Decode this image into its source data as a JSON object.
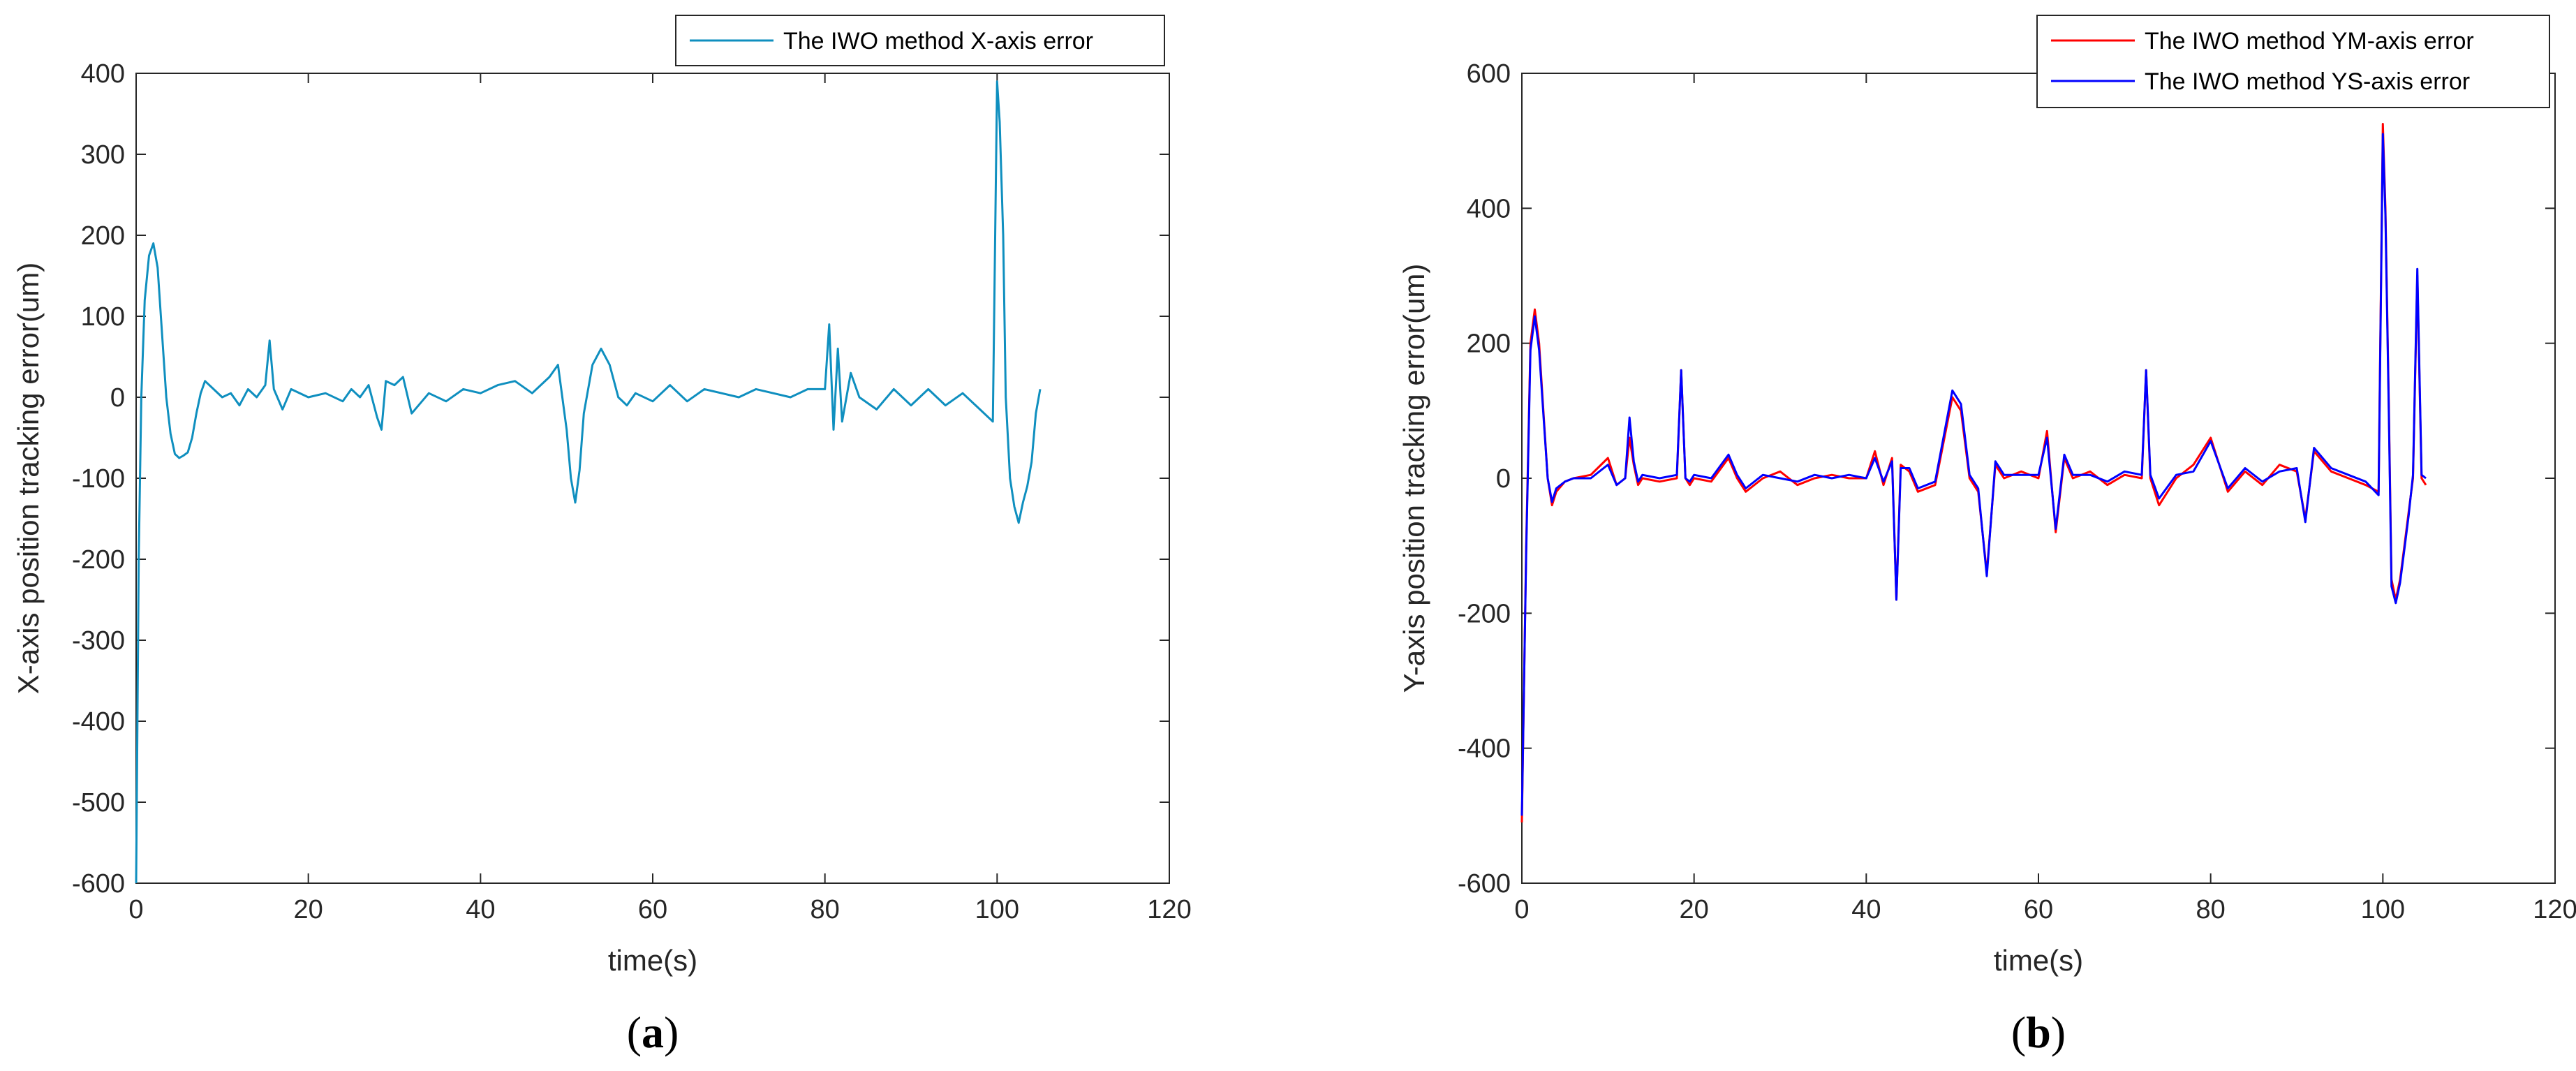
{
  "chart_data": [
    {
      "type": "line",
      "panel": "a",
      "xlabel": "time(s)",
      "ylabel": "X-axis position tracking error(um)",
      "xlim": [
        0,
        120
      ],
      "ylim": [
        -600,
        400
      ],
      "xticks": [
        0,
        20,
        40,
        60,
        80,
        100,
        120
      ],
      "yticks": [
        -600,
        -500,
        -400,
        -300,
        -200,
        -100,
        0,
        100,
        200,
        300,
        400
      ],
      "legend_position": "top-right",
      "series": [
        {
          "name": "The IWO method X-axis error",
          "color": "#0f8fbf",
          "x": [
            0,
            0.3,
            0.6,
            1.0,
            1.5,
            2.0,
            2.5,
            3.0,
            3.5,
            4.0,
            4.5,
            5.0,
            5.5,
            6.0,
            6.5,
            7.0,
            7.5,
            8.0,
            9,
            10,
            11,
            12,
            13,
            14,
            15,
            15.5,
            16,
            17,
            18,
            20,
            22,
            24,
            25,
            26,
            27,
            28,
            28.5,
            29,
            30,
            31,
            32,
            34,
            36,
            38,
            40,
            42,
            44,
            46,
            48,
            49,
            49.5,
            50,
            50.5,
            51,
            51.5,
            52,
            53,
            54,
            55,
            56,
            57,
            58,
            60,
            62,
            64,
            66,
            68,
            70,
            72,
            74,
            76,
            78,
            80,
            80.5,
            81,
            81.5,
            82,
            83,
            84,
            86,
            88,
            90,
            92,
            94,
            96,
            98,
            99.5,
            100,
            100.3,
            100.7,
            101,
            101.5,
            102,
            102.5,
            103,
            103.5,
            104,
            104.5,
            105
          ],
          "values": [
            -600,
            -200,
            0,
            120,
            175,
            190,
            160,
            80,
            0,
            -45,
            -70,
            -75,
            -72,
            -68,
            -50,
            -20,
            5,
            20,
            10,
            0,
            5,
            -10,
            10,
            0,
            15,
            70,
            10,
            -15,
            10,
            0,
            5,
            -5,
            10,
            0,
            15,
            -25,
            -40,
            20,
            15,
            25,
            -20,
            5,
            -5,
            10,
            5,
            15,
            20,
            5,
            25,
            40,
            0,
            -40,
            -100,
            -130,
            -90,
            -20,
            40,
            60,
            40,
            0,
            -10,
            5,
            -5,
            15,
            -5,
            10,
            5,
            0,
            10,
            5,
            0,
            10,
            10,
            90,
            -40,
            60,
            -30,
            30,
            0,
            -15,
            10,
            -10,
            10,
            -10,
            5,
            -15,
            -30,
            390,
            340,
            200,
            0,
            -100,
            -135,
            -155,
            -130,
            -110,
            -80,
            -20,
            10
          ]
        }
      ]
    },
    {
      "type": "line",
      "panel": "b",
      "xlabel": "time(s)",
      "ylabel": "Y-axis position tracking error(um)",
      "xlim": [
        0,
        120
      ],
      "ylim": [
        -600,
        600
      ],
      "xticks": [
        0,
        20,
        40,
        60,
        80,
        100,
        120
      ],
      "yticks": [
        -600,
        -400,
        -200,
        0,
        200,
        400,
        600
      ],
      "legend_position": "top-right",
      "series": [
        {
          "name": "The IWO method YM-axis error",
          "color": "#ff0000",
          "x": [
            0,
            0.5,
            1.0,
            1.5,
            2.0,
            2.5,
            3.0,
            3.5,
            4.0,
            5,
            6,
            8,
            10,
            11,
            12,
            12.5,
            13,
            13.5,
            14,
            16,
            18,
            18.5,
            19,
            19.5,
            20,
            22,
            24,
            25,
            26,
            28,
            30,
            32,
            34,
            36,
            38,
            40,
            41,
            42,
            43,
            43.5,
            44,
            45,
            46,
            48,
            50,
            51,
            52,
            53,
            54,
            55,
            56,
            58,
            60,
            61,
            62,
            63,
            64,
            66,
            68,
            70,
            72,
            72.5,
            73,
            74,
            76,
            78,
            80,
            82,
            84,
            86,
            88,
            90,
            91,
            92,
            94,
            96,
            98,
            99.5,
            100,
            100.3,
            100.7,
            101,
            101.5,
            102,
            102.5,
            103,
            103.5,
            104,
            104.5,
            105
          ],
          "values": [
            -510,
            -100,
            200,
            250,
            200,
            100,
            0,
            -40,
            -20,
            -5,
            0,
            5,
            30,
            -10,
            0,
            60,
            20,
            -10,
            0,
            -5,
            0,
            160,
            0,
            -10,
            0,
            -5,
            30,
            0,
            -20,
            0,
            10,
            -10,
            0,
            5,
            0,
            0,
            40,
            -10,
            30,
            -180,
            20,
            10,
            -20,
            -10,
            120,
            100,
            0,
            -20,
            -140,
            20,
            0,
            10,
            0,
            70,
            -80,
            30,
            0,
            10,
            -10,
            5,
            0,
            160,
            0,
            -40,
            0,
            20,
            60,
            -20,
            10,
            -10,
            20,
            10,
            -60,
            40,
            10,
            0,
            -10,
            -20,
            525,
            400,
            100,
            -150,
            -180,
            -150,
            -100,
            -50,
            0,
            300,
            0,
            -10
          ]
        },
        {
          "name": "The IWO method YS-axis error",
          "color": "#0000ff",
          "x": [
            0,
            0.5,
            1.0,
            1.5,
            2.0,
            2.5,
            3.0,
            3.5,
            4.0,
            5,
            6,
            8,
            10,
            11,
            12,
            12.5,
            13,
            13.5,
            14,
            16,
            18,
            18.5,
            19,
            19.5,
            20,
            22,
            24,
            25,
            26,
            28,
            30,
            32,
            34,
            36,
            38,
            40,
            41,
            42,
            43,
            43.5,
            44,
            45,
            46,
            48,
            50,
            51,
            52,
            53,
            54,
            55,
            56,
            58,
            60,
            61,
            62,
            63,
            64,
            66,
            68,
            70,
            72,
            72.5,
            73,
            74,
            76,
            78,
            80,
            82,
            84,
            86,
            88,
            90,
            91,
            92,
            94,
            96,
            98,
            99.5,
            100,
            100.3,
            100.7,
            101,
            101.5,
            102,
            102.5,
            103,
            103.5,
            104,
            104.5,
            105
          ],
          "values": [
            -500,
            -110,
            190,
            240,
            190,
            95,
            0,
            -35,
            -15,
            -5,
            0,
            0,
            20,
            -10,
            0,
            90,
            25,
            -5,
            5,
            0,
            5,
            160,
            0,
            -5,
            5,
            0,
            35,
            5,
            -15,
            5,
            0,
            -5,
            5,
            0,
            5,
            0,
            30,
            -5,
            25,
            -180,
            15,
            15,
            -15,
            -5,
            130,
            110,
            5,
            -15,
            -145,
            25,
            5,
            5,
            5,
            60,
            -75,
            35,
            5,
            5,
            -5,
            10,
            5,
            160,
            5,
            -30,
            5,
            10,
            55,
            -15,
            15,
            -5,
            10,
            15,
            -65,
            45,
            15,
            5,
            -5,
            -25,
            510,
            390,
            90,
            -160,
            -185,
            -155,
            -105,
            -55,
            5,
            310,
            5,
            0
          ]
        }
      ]
    }
  ],
  "panels": [
    {
      "label_open": "(",
      "label_letter": "a",
      "label_close": ")"
    },
    {
      "label_open": "(",
      "label_letter": "b",
      "label_close": ")"
    }
  ]
}
